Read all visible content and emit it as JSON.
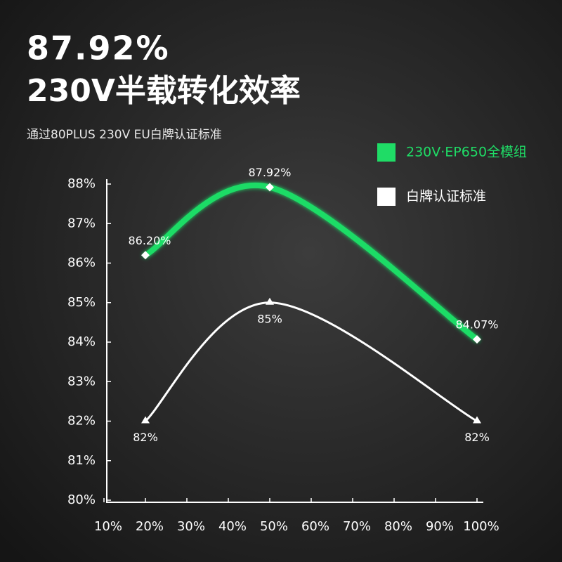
{
  "chart_data": {
    "type": "line",
    "title": "87.92%",
    "subtitle": "230V半载转化效率",
    "note": "通过80PLUS 230V EU白牌认证标准",
    "x": [
      20,
      50,
      100
    ],
    "xlim": [
      10,
      100
    ],
    "xticks": [
      {
        "value": 10,
        "label": "10%"
      },
      {
        "value": 20,
        "label": "20%"
      },
      {
        "value": 30,
        "label": "30%"
      },
      {
        "value": 40,
        "label": "40%"
      },
      {
        "value": 50,
        "label": "50%"
      },
      {
        "value": 60,
        "label": "60%"
      },
      {
        "value": 70,
        "label": "70%"
      },
      {
        "value": 80,
        "label": "80%"
      },
      {
        "value": 90,
        "label": "90%"
      },
      {
        "value": 100,
        "label": "100%"
      }
    ],
    "ylim": [
      80,
      88
    ],
    "yticks": [
      {
        "value": 80,
        "label": "80%"
      },
      {
        "value": 81,
        "label": "81%"
      },
      {
        "value": 82,
        "label": "82%"
      },
      {
        "value": 83,
        "label": "83%"
      },
      {
        "value": 84,
        "label": "84%"
      },
      {
        "value": 85,
        "label": "85%"
      },
      {
        "value": 86,
        "label": "86%"
      },
      {
        "value": 87,
        "label": "87%"
      },
      {
        "value": 88,
        "label": "88%"
      }
    ],
    "grid": false,
    "legend": "top-right",
    "series": [
      {
        "name": "230V·EP650全模组",
        "color": "#1fdc66",
        "values": [
          86.2,
          87.92,
          84.07
        ],
        "value_labels": [
          "86.20%",
          "87.92%",
          "84.07%"
        ]
      },
      {
        "name": "白牌认证标准",
        "color": "#ffffff",
        "values": [
          82,
          85,
          82
        ],
        "value_labels": [
          "82%",
          "85%",
          "82%"
        ]
      }
    ]
  }
}
